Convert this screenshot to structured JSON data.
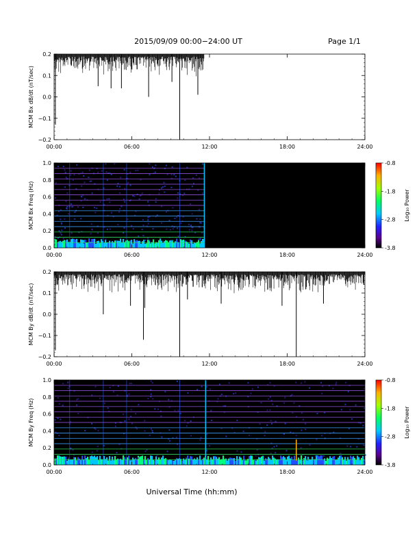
{
  "header": {
    "date_range": "2015/09/09  00:00−24:00 UT",
    "page": "Page 1/1"
  },
  "footer": {
    "xlabel": "Universal Time (hh:mm)"
  },
  "chart_data": [
    {
      "type": "line",
      "name": "bx-dbdt",
      "ylabel": "MCM Bx dB/dt (nT/sec)",
      "xlim": [
        0,
        24
      ],
      "ylim": [
        -0.2,
        0.2
      ],
      "xticks": [
        "00:00",
        "06:00",
        "12:00",
        "18:00",
        "24:00"
      ],
      "yticks": [
        "0.2",
        "0.1",
        "0.0",
        "−0.1",
        "−0.2"
      ],
      "data_end_hour": 11.6,
      "baseline": 0.2,
      "typical_dip": 0.06,
      "spikes": [
        {
          "x": 0.1,
          "y": -0.13
        },
        {
          "x": 3.4,
          "y": 0.05
        },
        {
          "x": 4.4,
          "y": 0.04
        },
        {
          "x": 5.2,
          "y": 0.04
        },
        {
          "x": 7.3,
          "y": 0.0
        },
        {
          "x": 9.1,
          "y": 0.07
        },
        {
          "x": 9.7,
          "y": -0.2
        },
        {
          "x": 11.1,
          "y": 0.01
        }
      ]
    },
    {
      "type": "heatmap",
      "name": "bx-spectrogram",
      "ylabel": "MCM Bx Freq (Hz)",
      "xlim": [
        0,
        24
      ],
      "ylim": [
        0,
        1
      ],
      "xticks": [
        "00:00",
        "06:00",
        "12:00",
        "18:00",
        "24:00"
      ],
      "yticks": [
        "1.0",
        "0.8",
        "0.6",
        "0.4",
        "0.2",
        "0.0"
      ],
      "data_end_hour": 11.6,
      "harmonic_spacing_hz": 0.0625,
      "colorbar": {
        "label": "Log₁₀ Power",
        "ticks": [
          "-0.8",
          "-1.8",
          "-2.8",
          "-3.8"
        ],
        "range": [
          -3.8,
          -0.8
        ]
      }
    },
    {
      "type": "line",
      "name": "by-dbdt",
      "ylabel": "MCM By dB/dt (nT/sec)",
      "xlim": [
        0,
        24
      ],
      "ylim": [
        -0.2,
        0.2
      ],
      "xticks": [
        "00:00",
        "06:00",
        "12:00",
        "18:00",
        "24:00"
      ],
      "yticks": [
        "0.2",
        "0.1",
        "0.0",
        "−0.1",
        "−0.2"
      ],
      "data_end_hour": 24,
      "baseline": 0.2,
      "typical_dip": 0.06,
      "spikes": [
        {
          "x": 0.1,
          "y": -0.17
        },
        {
          "x": 3.8,
          "y": 0.0
        },
        {
          "x": 5.9,
          "y": 0.04
        },
        {
          "x": 6.9,
          "y": -0.12
        },
        {
          "x": 7.0,
          "y": 0.03
        },
        {
          "x": 9.7,
          "y": -0.2
        },
        {
          "x": 10.3,
          "y": 0.07
        },
        {
          "x": 12.9,
          "y": 0.05
        },
        {
          "x": 17.6,
          "y": 0.04
        },
        {
          "x": 18.7,
          "y": -0.2
        },
        {
          "x": 20.8,
          "y": 0.05
        }
      ]
    },
    {
      "type": "heatmap",
      "name": "by-spectrogram",
      "ylabel": "MCM By Freq (Hz)",
      "xlim": [
        0,
        24
      ],
      "ylim": [
        0,
        1
      ],
      "xticks": [
        "00:00",
        "06:00",
        "12:00",
        "18:00",
        "24:00"
      ],
      "yticks": [
        "1.0",
        "0.8",
        "0.6",
        "0.4",
        "0.2",
        "0.0"
      ],
      "data_end_hour": 24,
      "harmonic_spacing_hz": 0.0625,
      "colorbar": {
        "label": "Log₁₀ Power",
        "ticks": [
          "-0.8",
          "-1.8",
          "-2.8",
          "-3.8"
        ],
        "range": [
          -3.8,
          -0.8
        ]
      }
    }
  ]
}
